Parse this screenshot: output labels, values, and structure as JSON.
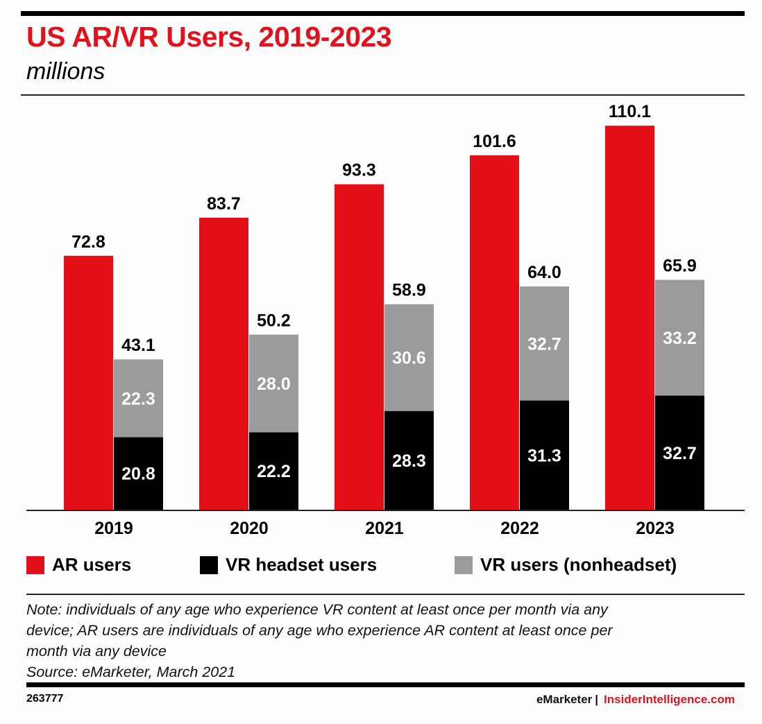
{
  "header": {
    "title": "US AR/VR Users, 2019-2023",
    "subtitle": "millions"
  },
  "colors": {
    "ar": "#e50f18",
    "vr_headset": "#000000",
    "vr_nonheadset": "#9b9a9d",
    "title": "#e3111b"
  },
  "legend": [
    {
      "label": "AR users",
      "series": "ar"
    },
    {
      "label": "VR headset users",
      "series": "vr_headset"
    },
    {
      "label": "VR users (nonheadset)",
      "series": "vr_nonheadset"
    }
  ],
  "footer": {
    "note_lines": [
      "Note: individuals of any age who experience VR content at least once per month via any",
      "device; AR users are individuals of any age who experience AR content at least once per",
      "month via any device",
      "Source: eMarketer, March 2021"
    ],
    "chart_id": "263777",
    "brand_emarketer": "eMarketer",
    "brand_separator": "|",
    "brand_insider": "InsiderIntelligence.com"
  },
  "chart_data": {
    "type": "bar",
    "title": "US AR/VR Users, 2019-2023",
    "subtitle": "millions",
    "xlabel": "",
    "ylabel": "millions",
    "categories": [
      "2019",
      "2020",
      "2021",
      "2022",
      "2023"
    ],
    "series": [
      {
        "name": "AR users",
        "key": "ar",
        "values": [
          72.8,
          83.7,
          93.3,
          101.6,
          110.1
        ]
      },
      {
        "name": "VR headset users",
        "key": "vr_headset",
        "stack": "vr",
        "values": [
          20.8,
          22.2,
          28.3,
          31.3,
          32.7
        ]
      },
      {
        "name": "VR users (nonheadset)",
        "key": "vr_nonheadset",
        "stack": "vr",
        "values": [
          22.3,
          28.0,
          30.6,
          32.7,
          33.2
        ]
      }
    ],
    "vr_totals": [
      43.1,
      50.2,
      58.9,
      64.0,
      65.9
    ],
    "ylim": [
      0,
      110.1
    ],
    "grid": false,
    "legend_position": "bottom"
  }
}
